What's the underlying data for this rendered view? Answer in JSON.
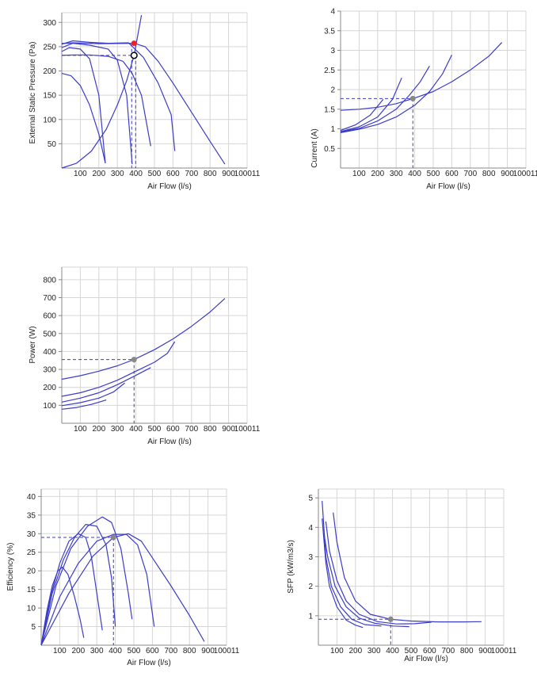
{
  "colors": {
    "curve": "#3c3cc8",
    "grid": "#d6d6d6",
    "axis": "#888888",
    "op_marker": "#888888",
    "pressure_marker": "#ee2222"
  },
  "chart_data": [
    {
      "type": "line",
      "xlabel": "Air Flow (l/s)",
      "ylabel": "External Static Pressure (Pa)",
      "xlim": [
        0,
        1000
      ],
      "ylim": [
        0,
        320
      ],
      "x_ticks": [
        "100",
        "200",
        "300",
        "400",
        "500",
        "600",
        "700",
        "800",
        "900",
        "100011"
      ],
      "y_ticks": [
        "50",
        "100",
        "150",
        "200",
        "250",
        "300"
      ],
      "series": [
        {
          "points": [
            [
              0,
              240
            ],
            [
              40,
              248
            ],
            [
              100,
              245
            ],
            [
              150,
              225
            ],
            [
              200,
              150
            ],
            [
              235,
              10
            ]
          ]
        },
        {
          "points": [
            [
              0,
              195
            ],
            [
              50,
              190
            ],
            [
              100,
              170
            ],
            [
              150,
              130
            ],
            [
              200,
              70
            ],
            [
              235,
              10
            ]
          ]
        },
        {
          "points": [
            [
              0,
              248
            ],
            [
              60,
              257
            ],
            [
              150,
              253
            ],
            [
              250,
              245
            ],
            [
              300,
              222
            ],
            [
              350,
              150
            ],
            [
              380,
              8
            ]
          ]
        },
        {
          "points": [
            [
              0,
              232
            ],
            [
              60,
              233
            ],
            [
              150,
              233
            ],
            [
              250,
              230
            ],
            [
              330,
              220
            ],
            [
              380,
              195
            ],
            [
              430,
              150
            ],
            [
              480,
              45
            ]
          ]
        },
        {
          "points": [
            [
              0,
              255
            ],
            [
              60,
              262
            ],
            [
              150,
              259
            ],
            [
              250,
              257
            ],
            [
              360,
              258
            ],
            [
              440,
              228
            ],
            [
              520,
              175
            ],
            [
              590,
              110
            ],
            [
              610,
              35
            ]
          ]
        },
        {
          "points": [
            [
              0,
              256
            ],
            [
              60,
              258
            ],
            [
              200,
              256
            ],
            [
              390,
              257
            ],
            [
              450,
              250
            ],
            [
              520,
              220
            ],
            [
              600,
              175
            ],
            [
              700,
              115
            ],
            [
              800,
              55
            ],
            [
              880,
              8
            ]
          ]
        },
        {
          "points": [
            [
              0,
              0
            ],
            [
              80,
              10
            ],
            [
              160,
              35
            ],
            [
              240,
              80
            ],
            [
              300,
              130
            ],
            [
              350,
              180
            ],
            [
              390,
              232
            ],
            [
              430,
              315
            ]
          ]
        }
      ],
      "operating_point": {
        "x": 390,
        "y": 232
      },
      "pressure_point": {
        "x": 390,
        "y": 257
      },
      "reference_levels": [
        257,
        232
      ]
    },
    {
      "type": "line",
      "xlabel": "Air Flow (l/s)",
      "ylabel": "Current (A)",
      "xlim": [
        0,
        1000
      ],
      "ylim": [
        0,
        4
      ],
      "x_ticks": [
        "100",
        "200",
        "300",
        "400",
        "500",
        "600",
        "700",
        "800",
        "900",
        "100011"
      ],
      "y_ticks": [
        "0.5",
        "1",
        "1.5",
        "2",
        "2.5",
        "3",
        "3.5",
        "4"
      ],
      "series": [
        {
          "points": [
            [
              0,
              1.47
            ],
            [
              100,
              1.5
            ],
            [
              200,
              1.55
            ],
            [
              300,
              1.64
            ],
            [
              390,
              1.77
            ],
            [
              500,
              1.95
            ],
            [
              600,
              2.2
            ],
            [
              700,
              2.5
            ],
            [
              800,
              2.85
            ],
            [
              870,
              3.2
            ]
          ]
        },
        {
          "points": [
            [
              0,
              0.96
            ],
            [
              80,
              1.1
            ],
            [
              160,
              1.35
            ],
            [
              230,
              1.75
            ]
          ]
        },
        {
          "points": [
            [
              0,
              0.93
            ],
            [
              100,
              1.05
            ],
            [
              200,
              1.3
            ],
            [
              280,
              1.75
            ],
            [
              330,
              2.3
            ]
          ]
        },
        {
          "points": [
            [
              0,
              0.92
            ],
            [
              100,
              1.01
            ],
            [
              200,
              1.2
            ],
            [
              300,
              1.5
            ],
            [
              370,
              1.85
            ],
            [
              430,
              2.2
            ],
            [
              480,
              2.6
            ]
          ]
        },
        {
          "points": [
            [
              0,
              0.9
            ],
            [
              100,
              0.99
            ],
            [
              200,
              1.11
            ],
            [
              300,
              1.3
            ],
            [
              400,
              1.6
            ],
            [
              480,
              1.95
            ],
            [
              550,
              2.4
            ],
            [
              600,
              2.88
            ]
          ]
        }
      ],
      "operating_point": {
        "x": 390,
        "y": 1.77
      }
    },
    {
      "type": "line",
      "xlabel": "Air Flow (l/s)",
      "ylabel": "Power (W)",
      "xlim": [
        0,
        1000
      ],
      "ylim": [
        0,
        870
      ],
      "x_ticks": [
        "100",
        "200",
        "300",
        "400",
        "500",
        "600",
        "700",
        "800",
        "900",
        "100011"
      ],
      "y_ticks": [
        "100",
        "200",
        "300",
        "400",
        "500",
        "600",
        "700",
        "800"
      ],
      "series": [
        {
          "points": [
            [
              0,
              245
            ],
            [
              100,
              265
            ],
            [
              200,
              290
            ],
            [
              300,
              320
            ],
            [
              390,
              355
            ],
            [
              500,
              410
            ],
            [
              600,
              470
            ],
            [
              700,
              540
            ],
            [
              800,
              620
            ],
            [
              880,
              695
            ]
          ]
        },
        {
          "points": [
            [
              0,
              78
            ],
            [
              80,
              88
            ],
            [
              160,
              105
            ],
            [
              240,
              130
            ]
          ]
        },
        {
          "points": [
            [
              0,
              98
            ],
            [
              100,
              115
            ],
            [
              200,
              140
            ],
            [
              280,
              175
            ],
            [
              340,
              225
            ]
          ]
        },
        {
          "points": [
            [
              0,
              118
            ],
            [
              100,
              140
            ],
            [
              200,
              170
            ],
            [
              300,
              215
            ],
            [
              390,
              262
            ],
            [
              480,
              310
            ]
          ]
        },
        {
          "points": [
            [
              0,
              150
            ],
            [
              100,
              170
            ],
            [
              200,
              200
            ],
            [
              300,
              240
            ],
            [
              400,
              290
            ],
            [
              500,
              340
            ],
            [
              570,
              390
            ],
            [
              610,
              455
            ]
          ]
        }
      ],
      "operating_point": {
        "x": 390,
        "y": 355
      }
    },
    {
      "type": "line",
      "xlabel": "Air Flow (l/s)",
      "ylabel": "Efficiency (%)",
      "xlim": [
        0,
        1000
      ],
      "ylim": [
        0,
        42
      ],
      "x_ticks": [
        "100",
        "200",
        "300",
        "400",
        "500",
        "600",
        "700",
        "800",
        "900",
        "100011"
      ],
      "y_ticks": [
        "5",
        "10",
        "15",
        "20",
        "25",
        "30",
        "35",
        "40"
      ],
      "series": [
        {
          "points": [
            [
              0,
              0
            ],
            [
              30,
              9
            ],
            [
              60,
              16
            ],
            [
              90,
              20
            ],
            [
              115,
              21
            ],
            [
              145,
              19
            ],
            [
              180,
              13
            ],
            [
              210,
              7
            ],
            [
              230,
              2
            ]
          ]
        },
        {
          "points": [
            [
              0,
              0
            ],
            [
              50,
              13
            ],
            [
              100,
              22
            ],
            [
              150,
              28
            ],
            [
              200,
              30
            ],
            [
              240,
              29
            ],
            [
              270,
              24
            ],
            [
              300,
              14
            ],
            [
              330,
              4
            ]
          ]
        },
        {
          "points": [
            [
              0,
              0
            ],
            [
              60,
              14
            ],
            [
              120,
              23
            ],
            [
              180,
              29
            ],
            [
              240,
              32.5
            ],
            [
              300,
              32
            ],
            [
              350,
              27
            ],
            [
              380,
              18
            ],
            [
              400,
              5
            ]
          ]
        },
        {
          "points": [
            [
              0,
              0
            ],
            [
              80,
              16
            ],
            [
              160,
              26
            ],
            [
              250,
              32
            ],
            [
              330,
              34.5
            ],
            [
              380,
              33
            ],
            [
              430,
              26
            ],
            [
              470,
              14
            ],
            [
              490,
              7
            ]
          ]
        },
        {
          "points": [
            [
              0,
              0
            ],
            [
              100,
              13
            ],
            [
              200,
              22
            ],
            [
              300,
              28
            ],
            [
              390,
              29.8
            ],
            [
              460,
              29.8
            ],
            [
              520,
              27
            ],
            [
              570,
              19
            ],
            [
              610,
              5
            ]
          ]
        },
        {
          "points": [
            [
              0,
              0
            ],
            [
              150,
              14
            ],
            [
              280,
              24
            ],
            [
              390,
              29
            ],
            [
              470,
              30
            ],
            [
              540,
              28
            ],
            [
              620,
              22
            ],
            [
              700,
              16
            ],
            [
              800,
              8
            ],
            [
              880,
              1
            ]
          ]
        }
      ],
      "operating_point": {
        "x": 390,
        "y": 29
      }
    },
    {
      "type": "line",
      "xlabel": "Air Flow (l/s)",
      "ylabel": "SFP (kW/m3/s)",
      "xlim": [
        0,
        1000
      ],
      "ylim": [
        0,
        5.3
      ],
      "x_ticks": [
        "100",
        "200",
        "300",
        "400",
        "500",
        "600",
        "700",
        "800",
        "900",
        "100011"
      ],
      "y_ticks": [
        "1",
        "2",
        "3",
        "4",
        "5"
      ],
      "series": [
        {
          "points": [
            [
              20,
              4.3
            ],
            [
              40,
              2.8
            ],
            [
              60,
              2.0
            ],
            [
              100,
              1.3
            ],
            [
              150,
              0.85
            ],
            [
              200,
              0.68
            ],
            [
              240,
              0.6
            ]
          ]
        },
        {
          "points": [
            [
              20,
              4.9
            ],
            [
              40,
              3.0
            ],
            [
              70,
              2.0
            ],
            [
              120,
              1.3
            ],
            [
              180,
              0.88
            ],
            [
              250,
              0.7
            ],
            [
              340,
              0.65
            ]
          ]
        },
        {
          "points": [
            [
              30,
              3.8
            ],
            [
              50,
              3.0
            ],
            [
              90,
              2.0
            ],
            [
              150,
              1.3
            ],
            [
              220,
              0.92
            ],
            [
              300,
              0.75
            ],
            [
              400,
              0.65
            ],
            [
              490,
              0.63
            ]
          ]
        },
        {
          "points": [
            [
              40,
              4.2
            ],
            [
              60,
              3.2
            ],
            [
              100,
              2.2
            ],
            [
              150,
              1.5
            ],
            [
              220,
              1.05
            ],
            [
              320,
              0.8
            ],
            [
              420,
              0.72
            ],
            [
              520,
              0.73
            ],
            [
              610,
              0.78
            ]
          ]
        },
        {
          "points": [
            [
              80,
              4.5
            ],
            [
              100,
              3.5
            ],
            [
              140,
              2.3
            ],
            [
              200,
              1.5
            ],
            [
              280,
              1.05
            ],
            [
              390,
              0.88
            ],
            [
              500,
              0.82
            ],
            [
              650,
              0.79
            ],
            [
              780,
              0.79
            ],
            [
              880,
              0.8
            ]
          ]
        }
      ],
      "operating_point": {
        "x": 390,
        "y": 0.88
      }
    }
  ]
}
